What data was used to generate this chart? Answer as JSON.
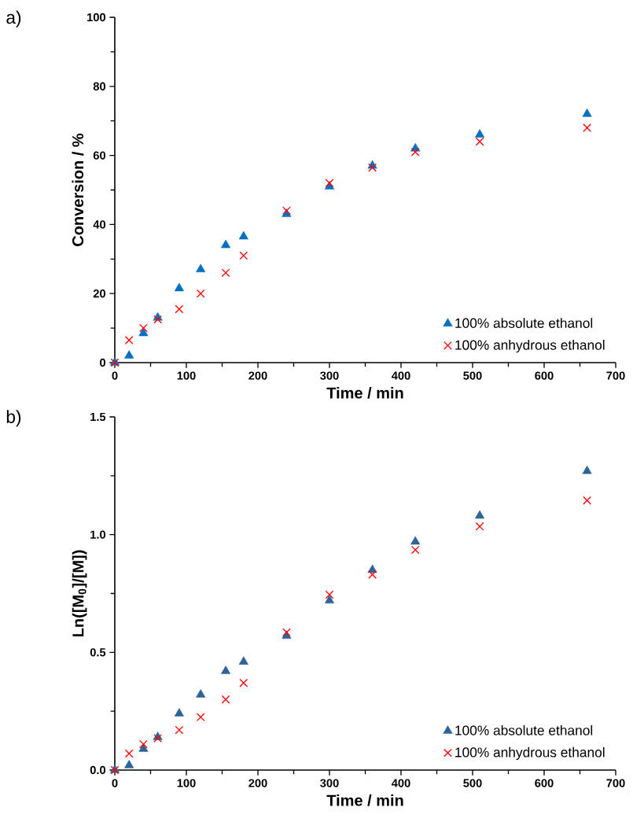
{
  "chart_data": [
    {
      "type": "scatter",
      "xlabel": "Time / min",
      "ylabel": "Conversion / %",
      "x": [
        0,
        20,
        40,
        60,
        90,
        120,
        155,
        180,
        240,
        300,
        360,
        420,
        510,
        660
      ],
      "series": [
        {
          "name": "100% absolute ethanol",
          "color": "#0070c0",
          "marker": "triangle",
          "values": [
            0,
            2,
            8.5,
            13,
            21.5,
            27,
            34,
            36.5,
            43,
            51,
            57,
            62,
            66,
            72
          ]
        },
        {
          "name": "100% anhydrous ethanol",
          "color": "#ff0000",
          "marker": "cross",
          "values": [
            0,
            6.5,
            10,
            12.5,
            15.5,
            20,
            26,
            31,
            44,
            52,
            56.5,
            61,
            64,
            68
          ]
        }
      ],
      "xlim": [
        0,
        700
      ],
      "ylim": [
        0,
        100
      ],
      "xticks": [
        0,
        {
          "value": 50,
          "label": null
        },
        100,
        {
          "value": 150,
          "label": null
        },
        200,
        {
          "value": 250,
          "label": null
        },
        300,
        {
          "value": 350,
          "label": null
        },
        400,
        {
          "value": 450,
          "label": null
        },
        500,
        {
          "value": 550,
          "label": null
        },
        600,
        {
          "value": 650,
          "label": null
        },
        700
      ],
      "yticks": [
        0,
        {
          "value": 10,
          "label": null
        },
        20,
        {
          "value": 30,
          "label": null
        },
        40,
        {
          "value": 50,
          "label": null
        },
        60,
        {
          "value": 70,
          "label": null
        },
        80,
        {
          "value": 90,
          "label": null
        },
        100
      ],
      "legend": "bottom right",
      "annotations": [
        "a)"
      ]
    },
    {
      "type": "scatter",
      "xlabel": "Time / min",
      "ylabel": "Ln([M$_{0}$]/[M])",
      "x": [
        0,
        20,
        40,
        60,
        90,
        120,
        155,
        180,
        240,
        300,
        360,
        420,
        510,
        660
      ],
      "series": [
        {
          "name": "100% absolute ethanol",
          "color": "#2e6399",
          "marker": "triangle",
          "values": [
            0,
            0.02,
            0.09,
            0.14,
            0.24,
            0.32,
            0.42,
            0.46,
            0.57,
            0.72,
            0.85,
            0.97,
            1.08,
            1.27
          ]
        },
        {
          "name": "100% anhydrous ethanol",
          "color": "#ff0000",
          "marker": "cross",
          "values": [
            0,
            0.07,
            0.11,
            0.135,
            0.17,
            0.225,
            0.3,
            0.37,
            0.585,
            0.745,
            0.83,
            0.935,
            1.035,
            1.145
          ]
        }
      ],
      "xlim": [
        0,
        700
      ],
      "ylim": [
        0,
        1.5
      ],
      "xticks": [
        0,
        {
          "value": 50,
          "label": null
        },
        100,
        {
          "value": 150,
          "label": null
        },
        200,
        {
          "value": 250,
          "label": null
        },
        300,
        {
          "value": 350,
          "label": null
        },
        400,
        {
          "value": 450,
          "label": null
        },
        500,
        {
          "value": 550,
          "label": null
        },
        600,
        {
          "value": 650,
          "label": null
        },
        700
      ],
      "yticks": [
        {
          "value": 0,
          "label": "0.0"
        },
        {
          "value": 0.25,
          "label": null
        },
        {
          "value": 0.5,
          "label": "0.5"
        },
        {
          "value": 0.75,
          "label": null
        },
        {
          "value": 1,
          "label": "1.0"
        },
        {
          "value": 1.25,
          "label": null
        },
        {
          "value": 1.5,
          "label": "1.5"
        }
      ],
      "legend": "bottom right",
      "annotations": [
        "b)"
      ]
    }
  ]
}
